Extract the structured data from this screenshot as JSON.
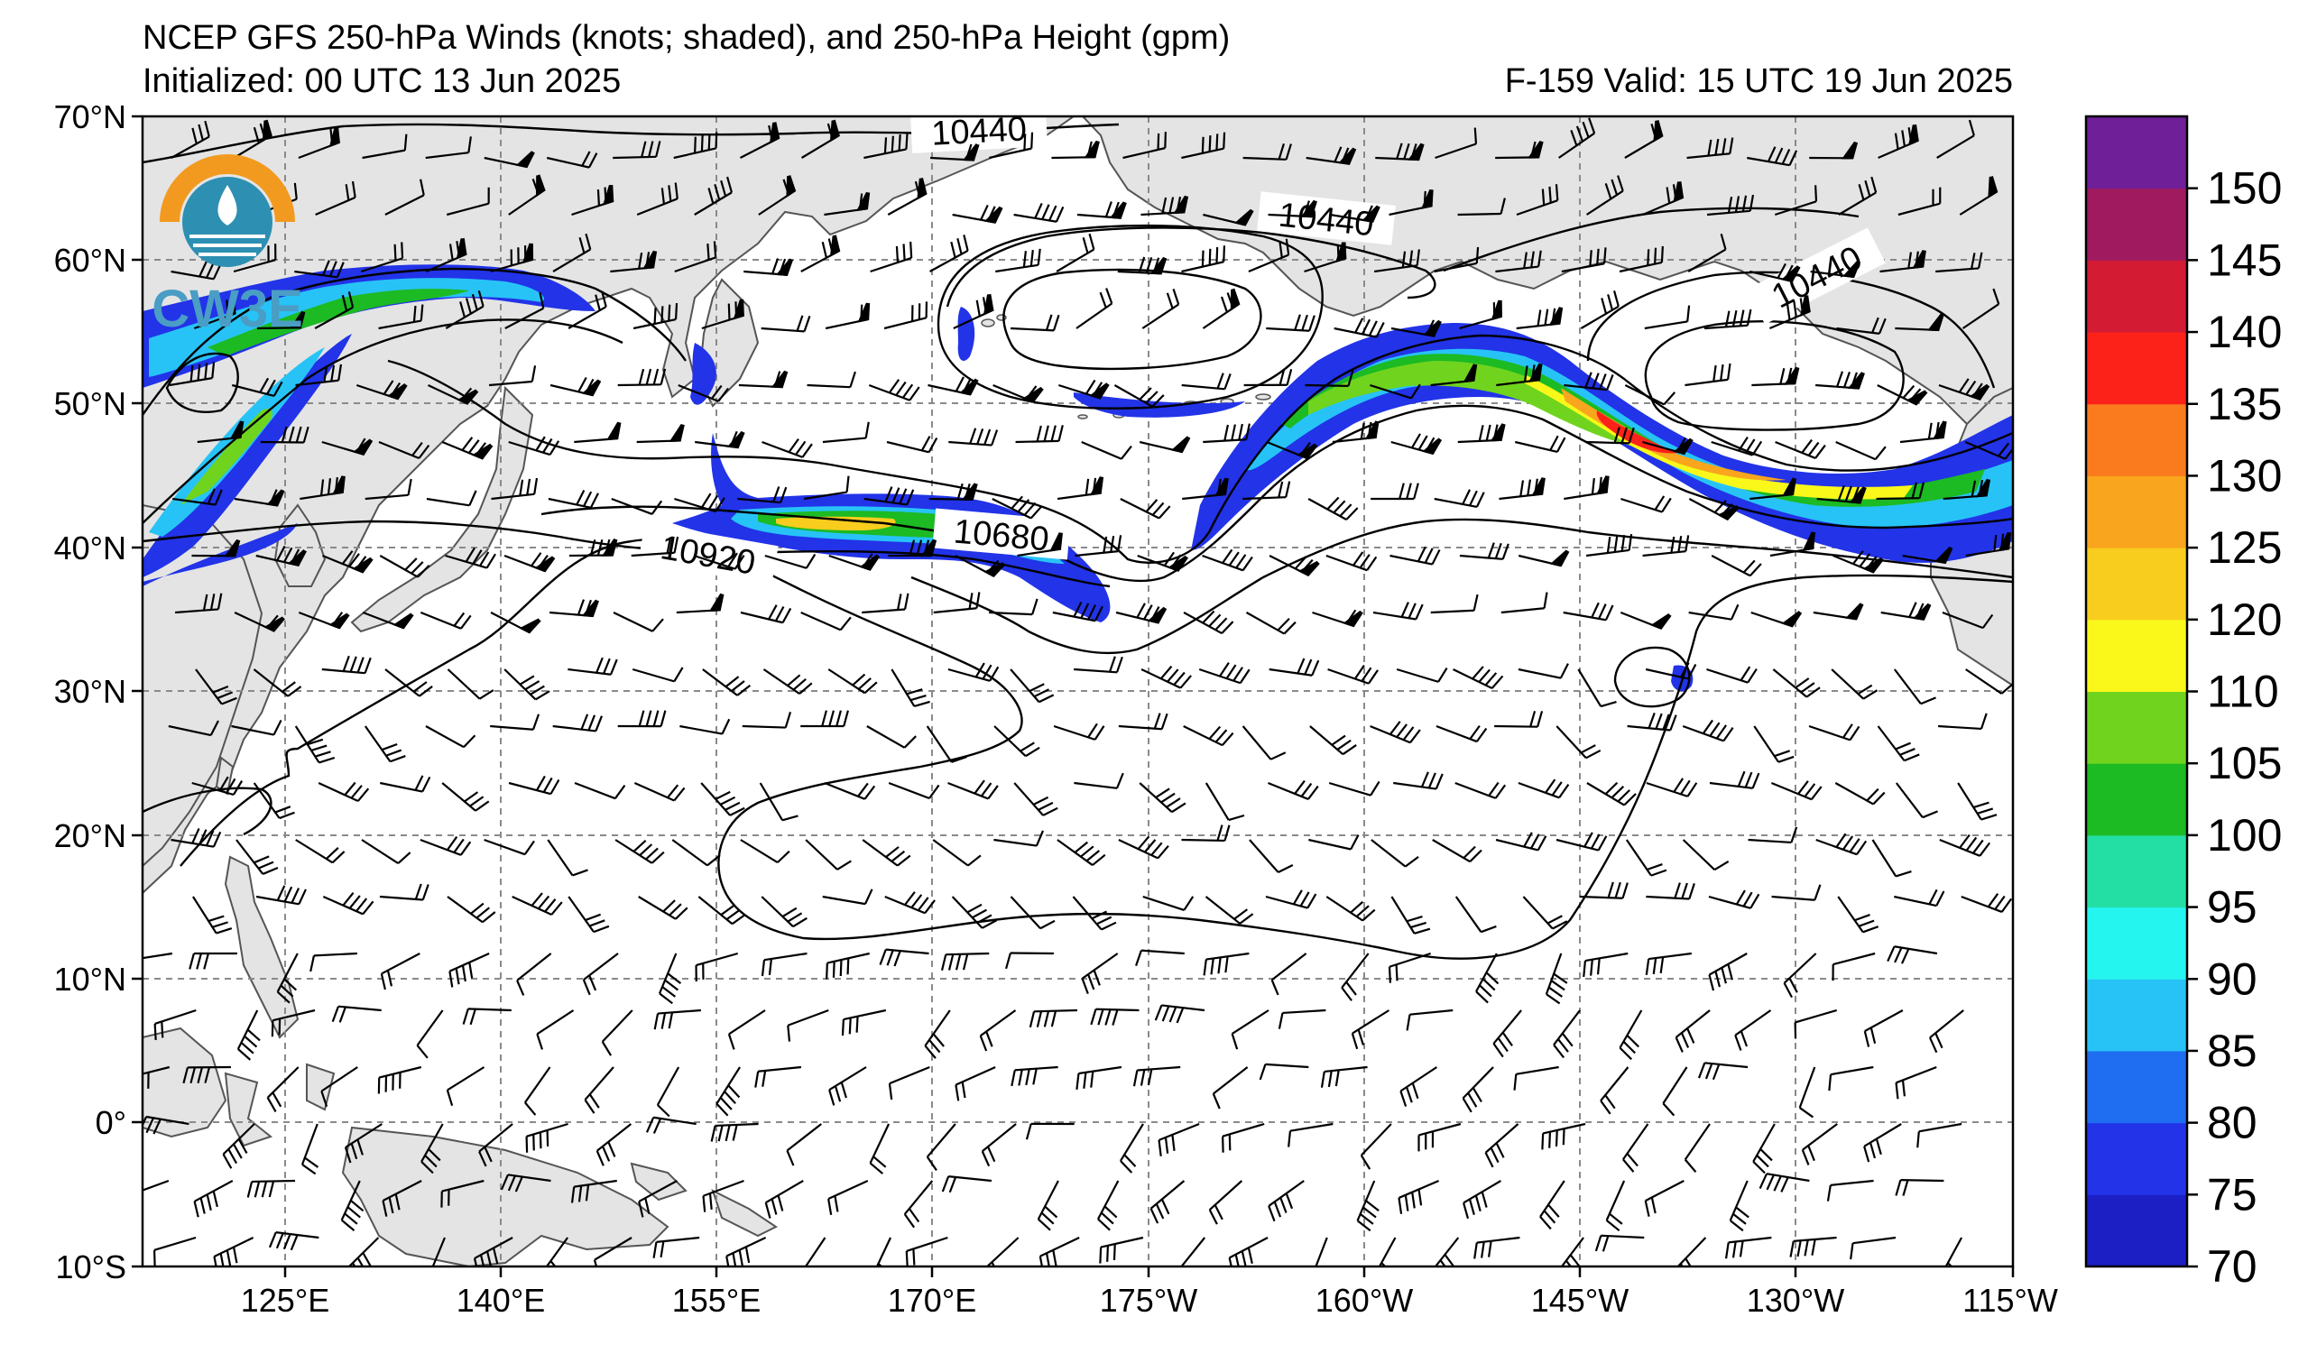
{
  "header": {
    "title": "NCEP GFS 250-hPa Winds (knots; shaded), and 250-hPa Height (gpm)",
    "initialized": "Initialized: 00 UTC 13 Jun 2025",
    "valid": "F-159  Valid: 15 UTC 19 Jun 2025"
  },
  "logo": {
    "text": "CW3E"
  },
  "map": {
    "projection": "cylindrical",
    "lon_range": [
      110,
      245
    ],
    "lat_range": [
      -10,
      70
    ],
    "lat_labels": [
      "70°N",
      "60°N",
      "50°N",
      "40°N",
      "30°N",
      "20°N",
      "10°N",
      "0°",
      "10°S"
    ],
    "lon_labels": [
      "125°E",
      "140°E",
      "155°E",
      "170°E",
      "175°W",
      "160°W",
      "145°W",
      "130°W",
      "115°W"
    ],
    "gridlines": "dashed gray",
    "land_color": "#e4e4e4",
    "ocean_color": "#ffffff"
  },
  "height_contours": {
    "labels": [
      {
        "text": "10440",
        "lon": 170.2,
        "lat": 66.9,
        "rot": -3
      },
      {
        "text": "10440",
        "lon": 195.3,
        "lat": 62.6,
        "rot": 6
      },
      {
        "text": "10440",
        "lon": 229.8,
        "lat": 61.2,
        "rot": -27
      },
      {
        "text": "10680",
        "lon": 174.7,
        "lat": 40.9,
        "rot": 5
      },
      {
        "text": "10920",
        "lon": 159.5,
        "lat": 39.0,
        "rot": 10
      }
    ]
  },
  "colorbar": {
    "labels": [
      "150",
      "145",
      "140",
      "135",
      "130",
      "125",
      "120",
      "110",
      "105",
      "100",
      "95",
      "90",
      "85",
      "80",
      "75",
      "70"
    ],
    "colors": [
      "#1b1fc4",
      "#2233e8",
      "#1f6df0",
      "#27c3f6",
      "#25f5ef",
      "#24dfa4",
      "#1cba23",
      "#70d41e",
      "#f9f81a",
      "#f8cd1d",
      "#f9a51e",
      "#f97b1e",
      "#fc2119",
      "#d31c34",
      "#a01a5f",
      "#6f1f97"
    ]
  }
}
